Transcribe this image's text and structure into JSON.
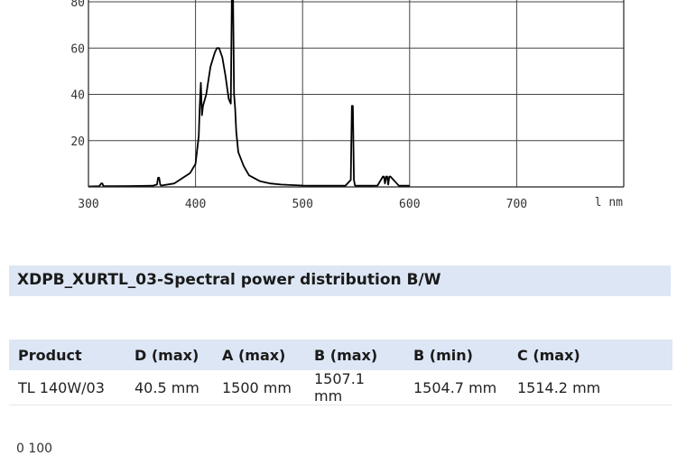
{
  "chart_data": {
    "type": "line",
    "title": "",
    "xlabel": "l nm",
    "ylabel": "",
    "xlim": [
      300,
      800
    ],
    "ylim": [
      0,
      80
    ],
    "x_ticks": [
      300,
      400,
      500,
      600,
      700
    ],
    "y_ticks": [
      20,
      40,
      60,
      80
    ],
    "grid": true,
    "series": [
      {
        "x": [
          300,
          310,
          312,
          313,
          314,
          320,
          340,
          360,
          364,
          365,
          366,
          367,
          368,
          380,
          395,
          400,
          403,
          404,
          405,
          406,
          407,
          410,
          414,
          418,
          420,
          422,
          425,
          428,
          431,
          433,
          434,
          435,
          436,
          437,
          438,
          440,
          445,
          450,
          460,
          470,
          480,
          500,
          520,
          540,
          545,
          546,
          547,
          548,
          549,
          550,
          560,
          570,
          575,
          576,
          577,
          578,
          579,
          580,
          581,
          582,
          590,
          600
        ],
        "y": [
          0.2,
          0.3,
          1.5,
          1.5,
          0.3,
          0.3,
          0.4,
          0.5,
          1,
          4,
          4,
          1,
          0.6,
          1.5,
          6,
          10,
          22,
          35,
          45,
          31,
          35,
          40,
          52,
          58,
          60,
          60,
          56,
          48,
          38,
          36,
          85,
          85,
          40,
          34,
          24,
          15,
          9,
          5,
          2.5,
          1.5,
          1,
          0.6,
          0.5,
          0.5,
          3,
          35,
          35,
          3,
          0.6,
          0.5,
          0.5,
          0.6,
          4.5,
          4.5,
          1.5,
          4.5,
          4.5,
          1,
          4.5,
          4.5,
          0.5,
          0.5
        ]
      }
    ]
  },
  "caption": "XDPB_XURTL_03-Spectral power distribution B/W",
  "table": {
    "headers": [
      "Product",
      "D (max)",
      "A (max)",
      "B (max)",
      "B (min)",
      "C (max)"
    ],
    "rows": [
      [
        "TL 140W/03",
        "40.5 mm",
        "1500 mm",
        "1507.1 mm",
        "1504.7 mm",
        "1514.2 mm"
      ]
    ]
  },
  "cutoff_text": "0 100"
}
